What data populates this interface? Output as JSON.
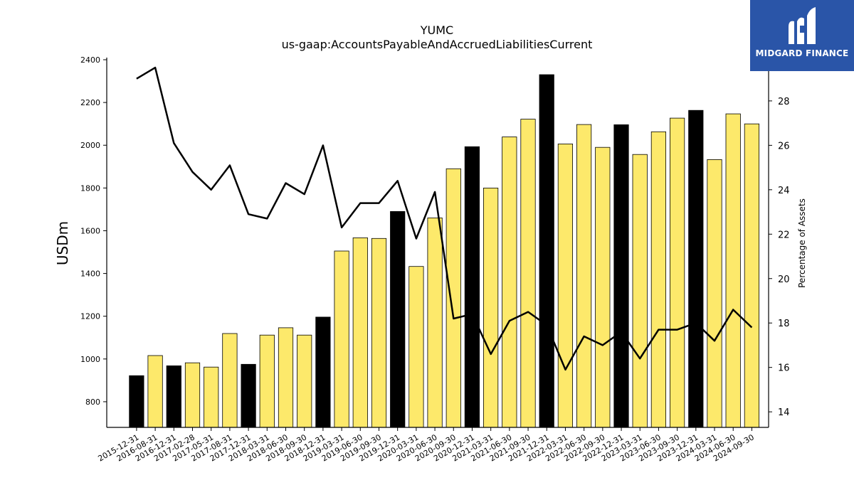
{
  "chart_data": {
    "type": "bar",
    "title": "YUMC",
    "subtitle": "us-gaap:AccountsPayableAndAccruedLiabilitiesCurrent",
    "ylabel": "USDm",
    "y2label": "Percentage of Assets",
    "ylim": [
      680,
      2410
    ],
    "y2lim": [
      13.3,
      29.95
    ],
    "yticks": [
      800,
      1000,
      1200,
      1400,
      1600,
      1800,
      2000,
      2200,
      2400
    ],
    "y2ticks": [
      14,
      16,
      18,
      20,
      22,
      24,
      26,
      28
    ],
    "categories": [
      "2015-12-31",
      "2016-08-31",
      "2016-12-31",
      "2017-02-28",
      "2017-05-31",
      "2017-08-31",
      "2017-12-31",
      "2018-03-31",
      "2018-06-30",
      "2018-09-30",
      "2018-12-31",
      "2019-03-31",
      "2019-06-30",
      "2019-09-30",
      "2019-12-31",
      "2020-03-31",
      "2020-06-30",
      "2020-09-30",
      "2020-12-31",
      "2021-03-31",
      "2021-06-30",
      "2021-09-30",
      "2021-12-31",
      "2022-03-31",
      "2022-06-30",
      "2022-09-30",
      "2022-12-31",
      "2023-03-31",
      "2023-06-30",
      "2023-09-30",
      "2023-12-31",
      "2024-03-31",
      "2024-06-30",
      "2024-09-30"
    ],
    "series": [
      {
        "type": "bar",
        "values": [
          922,
          1016,
          968,
          982,
          962,
          1119,
          975,
          1112,
          1146,
          1112,
          1196,
          1505,
          1567,
          1564,
          1690,
          1433,
          1660,
          1890,
          1993,
          1800,
          2039,
          2122,
          2330,
          2006,
          2097,
          1990,
          2096,
          1957,
          2063,
          2127,
          2163,
          1933,
          2147,
          2100
        ],
        "colors": [
          "#000000",
          "#fde96b",
          "#000000",
          "#fde96b",
          "#fde96b",
          "#fde96b",
          "#000000",
          "#fde96b",
          "#fde96b",
          "#fde96b",
          "#000000",
          "#fde96b",
          "#fde96b",
          "#fde96b",
          "#000000",
          "#fde96b",
          "#fde96b",
          "#fde96b",
          "#000000",
          "#fde96b",
          "#fde96b",
          "#fde96b",
          "#000000",
          "#fde96b",
          "#fde96b",
          "#fde96b",
          "#000000",
          "#fde96b",
          "#fde96b",
          "#fde96b",
          "#000000",
          "#fde96b",
          "#fde96b",
          "#fde96b"
        ]
      },
      {
        "type": "line",
        "axis": "right",
        "color": "#000000",
        "values": [
          29.0,
          29.5,
          26.1,
          24.8,
          24.0,
          25.1,
          22.9,
          22.7,
          24.3,
          23.8,
          26.0,
          22.3,
          23.4,
          23.4,
          24.4,
          21.8,
          23.9,
          18.2,
          18.4,
          16.6,
          18.1,
          18.5,
          17.9,
          15.9,
          17.4,
          17.0,
          17.6,
          16.4,
          17.7,
          17.7,
          18.0,
          17.2,
          18.6,
          17.8
        ]
      }
    ],
    "grid": false,
    "legend": "none"
  },
  "brand": {
    "name": "MIDGARD FINANCE",
    "bg_color": "#2a55a8",
    "mark_icon": "midgard-m-logo-icon"
  }
}
